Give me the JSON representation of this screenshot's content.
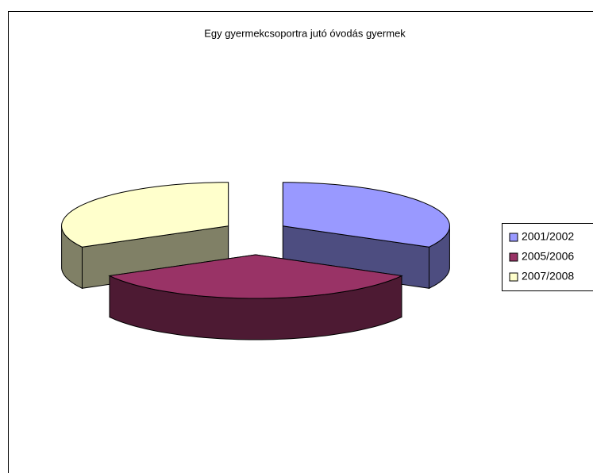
{
  "chart_data": {
    "type": "pie",
    "title": "Egy gyermekcsoportra jutó óvodás gyermek",
    "categories": [
      "2001/2002",
      "2005/2006",
      "2007/2008"
    ],
    "values": [
      33,
      34,
      33
    ],
    "colors": [
      "#9999ff",
      "#993366",
      "#ffffcc"
    ],
    "side_colors": [
      "#4d4d80",
      "#4d1a33",
      "#808066"
    ],
    "legend": "right"
  }
}
